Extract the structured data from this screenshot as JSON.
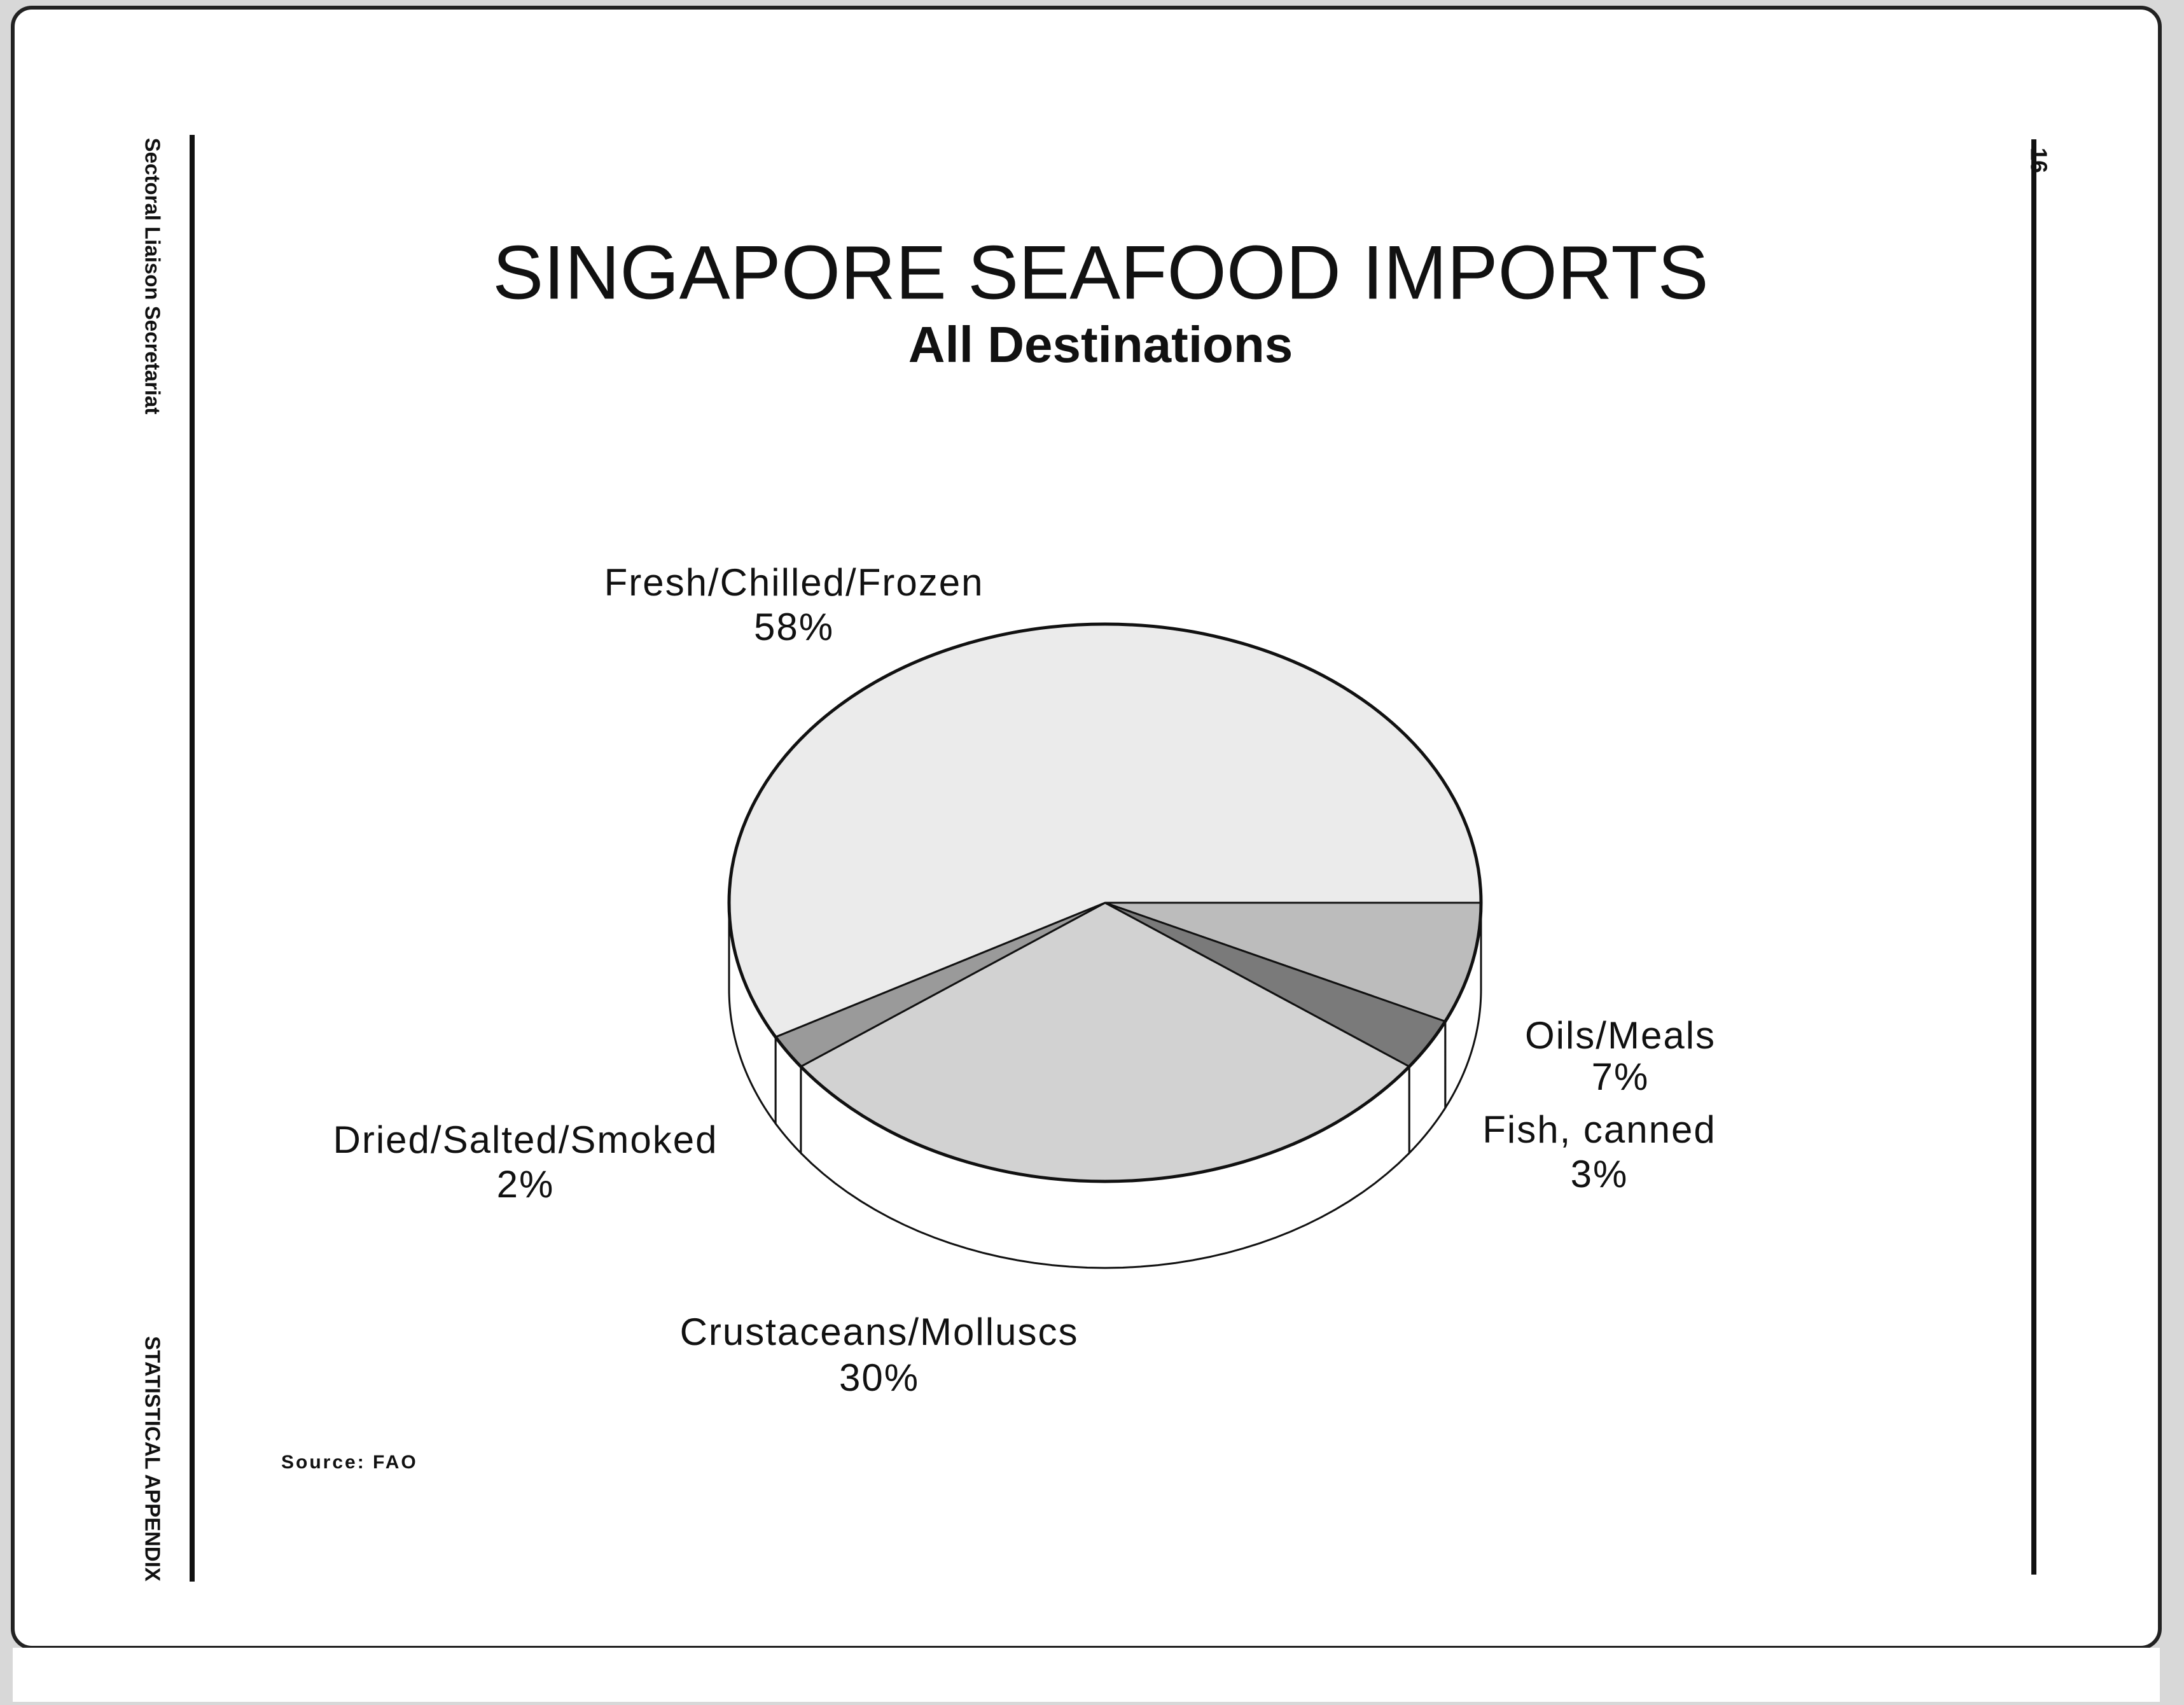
{
  "chart_data": {
    "type": "pie",
    "title": "SINGAPORE SEAFOOD IMPORTS",
    "subtitle": "All Destinations",
    "categories": [
      "Oils/Meals",
      "Fish, canned",
      "Crustaceans/Molluscs",
      "Dried/Salted/Smoked",
      "Fresh/Chilled/Frozen"
    ],
    "values": [
      7,
      3,
      30,
      2,
      58
    ],
    "value_labels": [
      "7%",
      "3%",
      "30%",
      "2%",
      "58%"
    ],
    "colors": [
      "#bcbcbc",
      "#7a7a7a",
      "#d2d2d2",
      "#9a9a9a",
      "#ebebeb"
    ],
    "source": "Source: FAO"
  },
  "page": {
    "left_top": "Sectoral Liaison Secretariat",
    "left_bottom": "STATISTICAL APPENDIX",
    "page_number": "16"
  }
}
